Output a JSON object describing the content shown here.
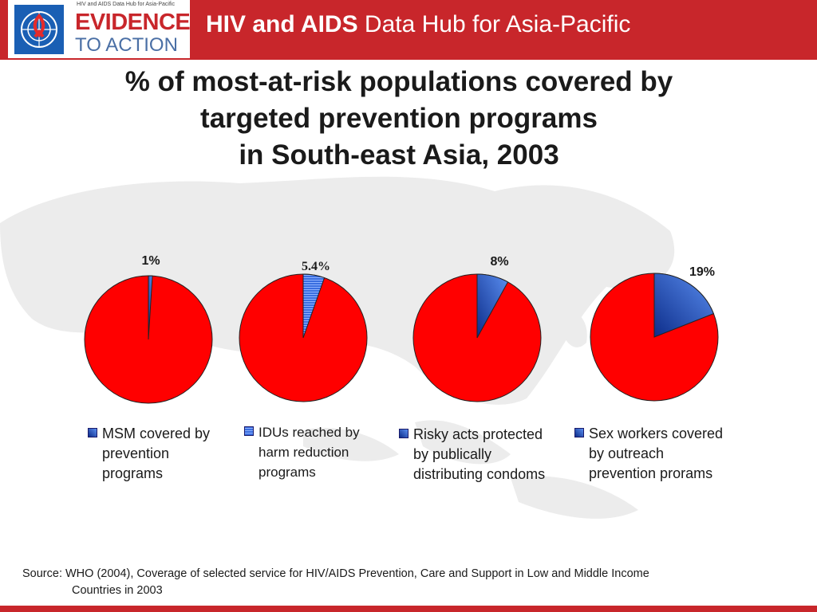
{
  "header": {
    "title_bold": "HIV and AIDS",
    "title_rest": " Data Hub for Asia-Pacific",
    "logo_tagline": "HIV and AIDS Data Hub for Asia-Pacific",
    "logo_line1": "EVIDENCE",
    "logo_line2": "TO ACTION"
  },
  "title_lines": [
    "% of most-at-risk populations covered by",
    "targeted prevention programs",
    "in South-east Asia, 2003"
  ],
  "source": {
    "line1": "Source: WHO (2004), Coverage of selected service for HIV/AIDS Prevention, Care and Support in Low and Middle Income",
    "line2": "Countries in 2003"
  },
  "colors": {
    "accent": "#c8262b",
    "pie_red": "#ff0000",
    "pie_blue": "#2a5fd8"
  },
  "chart_data": [
    {
      "type": "pie",
      "label": "1%",
      "value": 1,
      "legend": [
        "MSM covered by",
        "prevention",
        "programs"
      ]
    },
    {
      "type": "pie",
      "label": "5.4%",
      "value": 5.4,
      "legend": [
        "IDUs reached by",
        "harm reduction",
        "programs"
      ]
    },
    {
      "type": "pie",
      "label": "8%",
      "value": 8,
      "legend": [
        "Risky acts protected",
        "by publically",
        "distributing condoms"
      ]
    },
    {
      "type": "pie",
      "label": "19%",
      "value": 19,
      "legend": [
        "Sex workers covered",
        "by outreach",
        "prevention prorams"
      ]
    }
  ]
}
